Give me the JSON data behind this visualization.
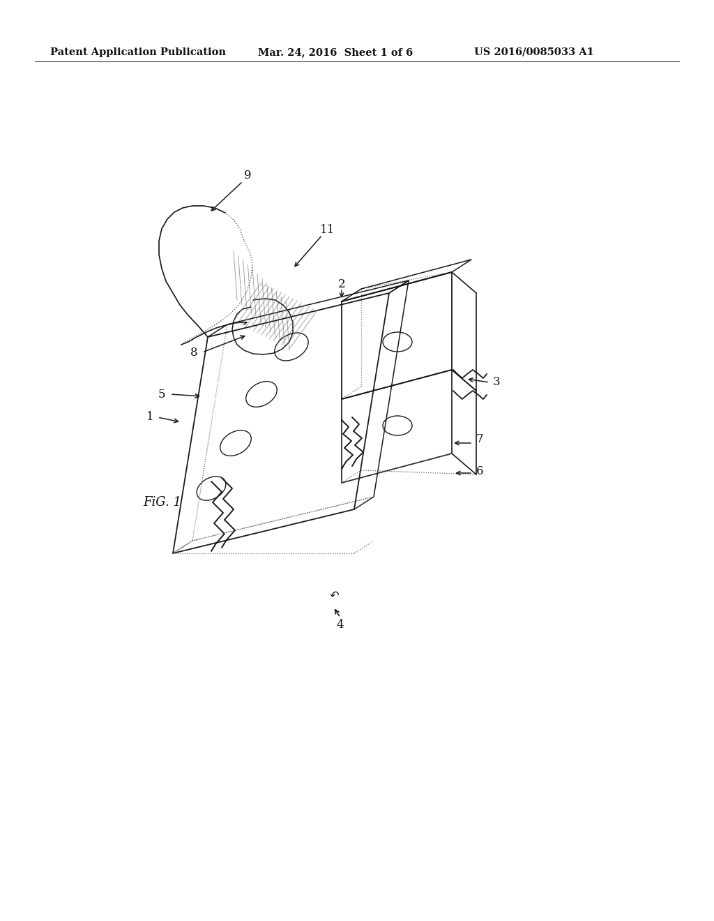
{
  "header_left": "Patent Application Publication",
  "header_mid": "Mar. 24, 2016  Sheet 1 of 6",
  "header_right": "US 2016/0085033 A1",
  "figure_label": "FiG. 1",
  "background_color": "#ffffff",
  "line_color": "#1a1a1a",
  "dot_color": "#555555",
  "header_fontsize": 10.5,
  "label_fontsize": 12,
  "fig_label_fontsize": 13
}
